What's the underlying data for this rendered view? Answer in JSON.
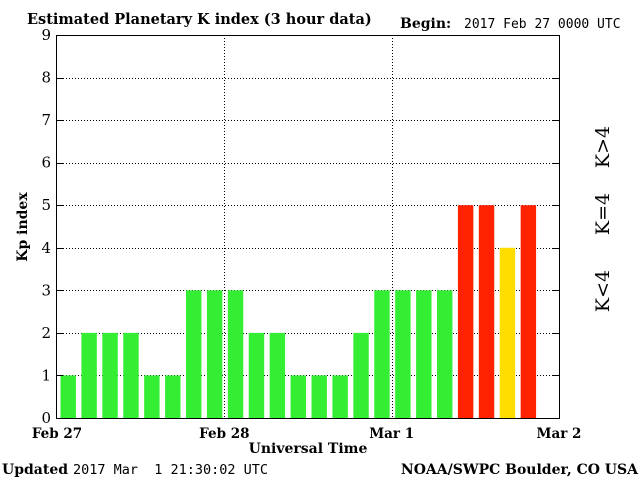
{
  "chart_data": {
    "type": "bar",
    "title": "Estimated Planetary K index (3 hour data)",
    "begin_label": "Begin:",
    "begin_value": "2017 Feb 27 0000 UTC",
    "xlabel": "Universal Time",
    "ylabel": "Kp index",
    "ylim": [
      0,
      9
    ],
    "yticks": [
      "0",
      "1",
      "2",
      "3",
      "4",
      "5",
      "6",
      "7",
      "8",
      "9"
    ],
    "x_tick_labels": [
      "Feb 27",
      "Feb 28",
      "Mar 1",
      "Mar 2"
    ],
    "grid": true,
    "values": [
      1,
      2,
      2,
      2,
      1,
      1,
      3,
      3,
      3,
      2,
      2,
      1,
      1,
      1,
      2,
      3,
      3,
      3,
      3,
      5,
      5,
      4,
      5
    ],
    "legend": [
      {
        "label": "K<4",
        "color": "#33ee33"
      },
      {
        "label": "K=4",
        "color": "#ffdd00"
      },
      {
        "label": "K>4",
        "color": "#ff2200"
      }
    ],
    "bar_colors": {
      "low": "#33ee33",
      "mid": "#ffdd00",
      "high": "#ff2200"
    }
  },
  "footer": {
    "updated_label": "Updated",
    "updated_value": "2017 Mar  1 21:30:02 UTC",
    "source": "NOAA/SWPC Boulder, CO USA"
  }
}
